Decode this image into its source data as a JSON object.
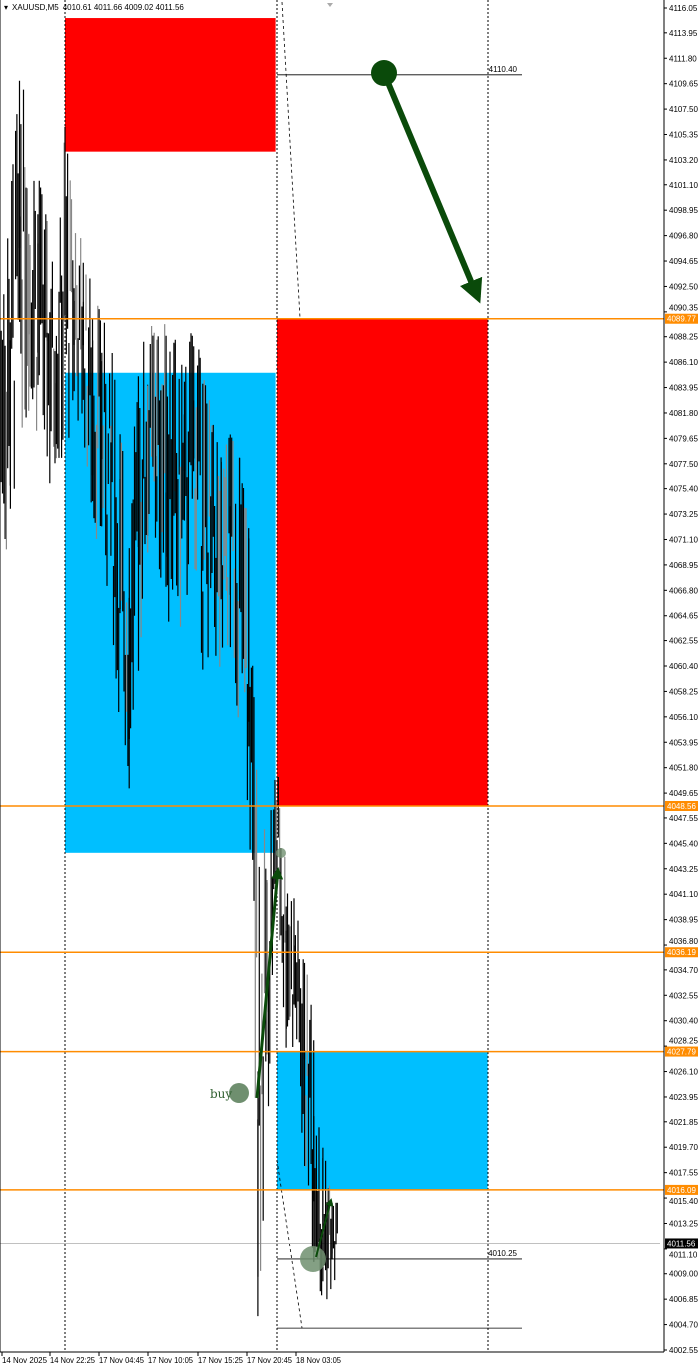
{
  "header": {
    "symbol": "XAUUSD,M5",
    "ohlc": "4010.61 4011.66 4009.02 4011.56"
  },
  "chart_data": {
    "type": "candlestick",
    "symbol": "XAUUSD",
    "timeframe": "M5",
    "ylim": [
      4002.55,
      4116.05
    ],
    "y_ticks": [
      "4116.05",
      "4113.95",
      "4111.80",
      "4109.65",
      "4107.50",
      "4105.35",
      "4103.20",
      "4101.10",
      "4098.95",
      "4096.80",
      "4094.65",
      "4092.50",
      "4090.35",
      "4088.25",
      "4086.10",
      "4083.95",
      "4081.80",
      "4079.65",
      "4077.50",
      "4075.40",
      "4073.25",
      "4071.10",
      "4068.95",
      "4066.80",
      "4064.65",
      "4062.55",
      "4060.40",
      "4058.25",
      "4056.10",
      "4053.95",
      "4051.80",
      "4049.65",
      "4047.55",
      "4045.40",
      "4043.25",
      "4041.10",
      "4038.95",
      "4036.80",
      "4034.70",
      "4032.55",
      "4030.40",
      "4028.25",
      "4026.10",
      "4023.95",
      "4021.85",
      "4019.70",
      "4017.55",
      "4015.40",
      "4013.25",
      "4011.10",
      "4009.00",
      "4006.85",
      "4004.70",
      "4002.55"
    ],
    "x_ticks": [
      "14 Nov 2025",
      "14 Nov 22:25",
      "17 Nov 04:45",
      "17 Nov 10:05",
      "17 Nov 15:25",
      "17 Nov 20:45",
      "18 Nov 03:05"
    ],
    "current_price": "4011.56",
    "colors": {
      "bull_bear": "#000000",
      "level_line": "#ff8c00",
      "supply_zone": "#ff0000",
      "demand_zone": "#00bfff",
      "arrow": "#0a4a0a",
      "marker": "#6f8f6f"
    },
    "bars": [
      {
        "t": "14 Nov 17:00",
        "high": 4095,
        "low": 4068
      },
      {
        "t": "14 Nov 18:00",
        "high": 4100,
        "low": 4072
      },
      {
        "t": "14 Nov 19:00",
        "high": 4110,
        "low": 4080
      },
      {
        "t": "14 Nov 20:00",
        "high": 4108,
        "low": 4082
      },
      {
        "t": "14 Nov 21:00",
        "high": 4102,
        "low": 4080
      },
      {
        "t": "14 Nov 22:00",
        "high": 4098,
        "low": 4075
      },
      {
        "t": "14 Nov 23:00",
        "high": 4092,
        "low": 4078
      },
      {
        "t": "17 Nov 01:00",
        "high": 4106,
        "low": 4078
      },
      {
        "t": "17 Nov 02:00",
        "high": 4098,
        "low": 4082
      },
      {
        "t": "17 Nov 03:00",
        "high": 4096,
        "low": 4080
      },
      {
        "t": "17 Nov 04:00",
        "high": 4092,
        "low": 4072
      },
      {
        "t": "17 Nov 05:00",
        "high": 4090,
        "low": 4070
      },
      {
        "t": "17 Nov 06:00",
        "high": 4088,
        "low": 4065
      },
      {
        "t": "17 Nov 07:00",
        "high": 4080,
        "low": 4055
      },
      {
        "t": "17 Nov 08:00",
        "high": 4075,
        "low": 4050
      },
      {
        "t": "17 Nov 09:00",
        "high": 4085,
        "low": 4060
      },
      {
        "t": "17 Nov 10:00",
        "high": 4090,
        "low": 4070
      },
      {
        "t": "17 Nov 11:00",
        "high": 4088,
        "low": 4070
      },
      {
        "t": "17 Nov 12:00",
        "high": 4090,
        "low": 4065
      },
      {
        "t": "17 Nov 13:00",
        "high": 4088,
        "low": 4062
      },
      {
        "t": "17 Nov 14:00",
        "high": 4085,
        "low": 4065
      },
      {
        "t": "17 Nov 15:00",
        "high": 4090,
        "low": 4070
      },
      {
        "t": "17 Nov 16:00",
        "high": 4085,
        "low": 4060
      },
      {
        "t": "17 Nov 17:00",
        "high": 4082,
        "low": 4062
      },
      {
        "t": "17 Nov 18:00",
        "high": 4078,
        "low": 4058
      },
      {
        "t": "17 Nov 19:00",
        "high": 4080,
        "low": 4062
      },
      {
        "t": "17 Nov 20:00",
        "high": 4078,
        "low": 4055
      },
      {
        "t": "17 Nov 21:00",
        "high": 4072,
        "low": 4048
      },
      {
        "t": "17 Nov 22:00",
        "high": 4048,
        "low": 4005
      },
      {
        "t": "17 Nov 23:00",
        "high": 4046,
        "low": 4020
      },
      {
        "t": "18 Nov 01:00",
        "high": 4052,
        "low": 4040
      },
      {
        "t": "18 Nov 02:00",
        "high": 4045,
        "low": 4028
      },
      {
        "t": "18 Nov 03:00",
        "high": 4040,
        "low": 4028
      },
      {
        "t": "18 Nov 04:00",
        "high": 4036,
        "low": 4018
      },
      {
        "t": "18 Nov 05:00",
        "high": 4030,
        "low": 4010
      },
      {
        "t": "18 Nov 06:00",
        "high": 4020,
        "low": 4006
      },
      {
        "t": "18 Nov 07:00",
        "high": 4015,
        "low": 4008
      }
    ],
    "levels": [
      {
        "price": 4089.77,
        "label": "4089.77"
      },
      {
        "price": 4048.56,
        "label": "4048.56"
      },
      {
        "price": 4036.19,
        "label": "4036.19"
      },
      {
        "price": 4027.79,
        "label": "4027.79"
      },
      {
        "price": 4016.09,
        "label": "4016.09"
      }
    ],
    "zones": [
      {
        "kind": "supply",
        "t1": "17 Nov 01:00",
        "t2": "17 Nov 23:55",
        "top": 4115.2,
        "bottom": 4103.9
      },
      {
        "kind": "demand",
        "t1": "17 Nov 01:00",
        "t2": "17 Nov 23:55",
        "top": 4085.2,
        "bottom": 4044.6
      },
      {
        "kind": "supply",
        "t1": "18 Nov 01:00",
        "t2": "18 Nov 23:55",
        "top": 4089.77,
        "bottom": 4048.56
      },
      {
        "kind": "demand",
        "t1": "18 Nov 01:00",
        "t2": "18 Nov 23:55",
        "top": 4027.79,
        "bottom": 4016.09
      }
    ],
    "price_lines": [
      {
        "price": 4110.4,
        "label": "4110.40"
      },
      {
        "price": 4010.25,
        "label": "4010.25"
      },
      {
        "price": 4004.4,
        "label": ""
      }
    ],
    "annotations": {
      "buy_label": "buy"
    }
  }
}
